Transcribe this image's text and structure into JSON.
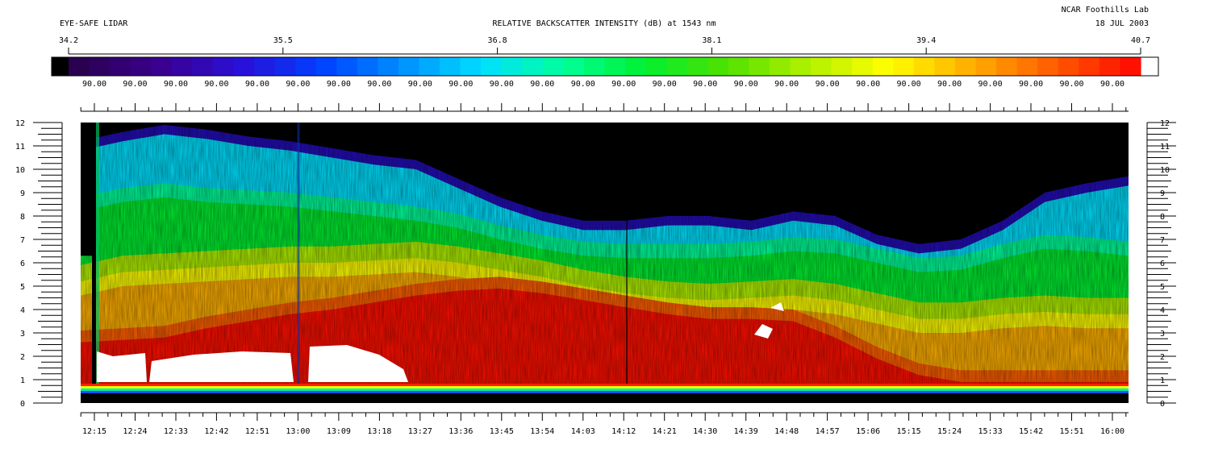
{
  "header": {
    "left_title": "EYE-SAFE LIDAR",
    "center_title": "RELATIVE BACKSCATTER INTENSITY (dB) at 1543 nm",
    "org": "NCAR Foothills Lab",
    "date": "18 JUL 2003"
  },
  "chart_data": {
    "type": "heatmap",
    "title": "RELATIVE BACKSCATTER INTENSITY (dB) at 1543 nm",
    "colorbar": {
      "range": [
        34.2,
        40.7
      ],
      "tick_labels": [
        "34.2",
        "35.5",
        "36.8",
        "38.1",
        "39.4",
        "40.7"
      ],
      "sub_labels": [
        "90.00",
        "90.00",
        "90.00",
        "90.00",
        "90.00",
        "90.00",
        "90.00",
        "90.00",
        "90.00",
        "90.00",
        "90.00",
        "90.00",
        "90.00",
        "90.00",
        "90.00",
        "90.00",
        "90.00",
        "90.00",
        "90.00",
        "90.00",
        "90.00",
        "90.00",
        "90.00",
        "90.00",
        "90.00",
        "90.00"
      ],
      "colors": [
        "#000000",
        "#2a0050",
        "#3a008e",
        "#2a10d8",
        "#0040ff",
        "#0090ff",
        "#00e0ff",
        "#00ff9a",
        "#00f030",
        "#50e000",
        "#b0f000",
        "#ffff00",
        "#ffb000",
        "#ff6000",
        "#ff1000",
        "#ffffff"
      ]
    },
    "x_tick_labels": [
      "12:15",
      "12:24",
      "12:33",
      "12:42",
      "12:51",
      "13:00",
      "13:09",
      "13:18",
      "13:27",
      "13:36",
      "13:45",
      "13:54",
      "14:03",
      "14:12",
      "14:21",
      "14:30",
      "14:39",
      "14:48",
      "14:57",
      "15:06",
      "15:15",
      "15:24",
      "15:33",
      "15:42",
      "15:51",
      "16:00"
    ],
    "y_tick_labels": [
      "0",
      "1",
      "2",
      "3",
      "4",
      "5",
      "6",
      "7",
      "8",
      "9",
      "10",
      "11",
      "12"
    ],
    "ylim": [
      0,
      12
    ],
    "layers": {
      "strong_top": [
        2.6,
        2.7,
        2.8,
        3.2,
        3.5,
        3.8,
        4.0,
        4.3,
        4.6,
        4.8,
        4.9,
        4.7,
        4.4,
        4.1,
        3.8,
        3.6,
        3.6,
        3.5,
        2.8,
        1.9,
        1.2,
        0.9,
        0.9,
        0.9,
        0.9,
        0.9
      ],
      "orange_top": [
        5.2,
        5.6,
        5.7,
        5.8,
        5.9,
        6.0,
        6.0,
        6.1,
        6.2,
        6.0,
        5.7,
        5.4,
        5.0,
        4.7,
        4.5,
        4.4,
        4.5,
        4.6,
        4.4,
        4.0,
        3.6,
        3.6,
        3.8,
        3.9,
        3.8,
        3.8
      ],
      "green_top": [
        8.2,
        8.6,
        8.8,
        8.6,
        8.5,
        8.4,
        8.2,
        8.0,
        7.8,
        7.5,
        7.0,
        6.6,
        6.3,
        6.2,
        6.2,
        6.2,
        6.3,
        6.5,
        6.4,
        6.0,
        5.6,
        5.7,
        6.2,
        6.6,
        6.5,
        6.3
      ],
      "cyan_top": [
        10.8,
        11.2,
        11.5,
        11.3,
        11.0,
        10.8,
        10.5,
        10.2,
        10.0,
        9.2,
        8.4,
        7.8,
        7.4,
        7.4,
        7.6,
        7.6,
        7.4,
        7.8,
        7.6,
        6.8,
        6.4,
        6.6,
        7.4,
        8.6,
        9.0,
        9.3
      ]
    }
  }
}
